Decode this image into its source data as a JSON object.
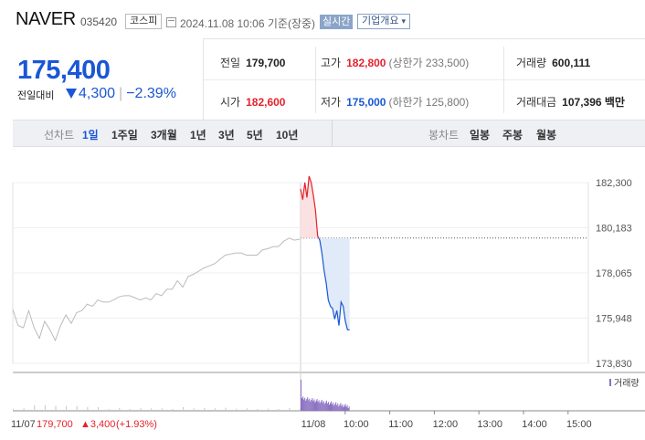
{
  "header": {
    "name": "NAVER",
    "code": "035420",
    "market": "코스피",
    "datetime": "2024.11.08 10:06 기준(장중)",
    "live_label": "실시간",
    "corp_info_label": "기업개요"
  },
  "price": {
    "current": "175,400",
    "change_label": "전일대비",
    "change_abs": "4,300",
    "change_pct": "−2.39%",
    "direction": "down"
  },
  "info": {
    "prev_label": "전일",
    "prev_value": "179,700",
    "high_label": "고가",
    "high_value": "182,800",
    "upper_limit": "(상한가 233,500)",
    "volume_label": "거래량",
    "volume_value": "600,111",
    "open_label": "시가",
    "open_value": "182,600",
    "low_label": "저가",
    "low_value": "175,000",
    "lower_limit": "(하한가 125,800)",
    "amount_label": "거래대금",
    "amount_value": "107,396 백만"
  },
  "toolbar": {
    "line_label": "선차트",
    "periods": [
      "1일",
      "1주일",
      "3개월",
      "1년",
      "3년",
      "5년",
      "10년"
    ],
    "active_period": "1일",
    "candle_label": "봉차트",
    "candle_periods": [
      "일봉",
      "주봉",
      "월봉"
    ]
  },
  "chart_data": {
    "type": "line",
    "y_ticks": [
      "182,300",
      "180,183",
      "178,065",
      "175,948",
      "173,830"
    ],
    "ylim": [
      173830,
      182300
    ],
    "prev_close": 179700,
    "x_ticks": [
      "11/07",
      "11/08",
      "10:00",
      "11:00",
      "12:00",
      "13:00",
      "14:00",
      "15:00"
    ],
    "volume_label": "거래량",
    "prev_day_series": {
      "name": "11/07",
      "color": "#bbbbbb",
      "values": [
        176350,
        175600,
        175500,
        176300,
        175500,
        175000,
        175800,
        175400,
        174900,
        175600,
        176100,
        175700,
        176200,
        176300,
        176600,
        176500,
        176800,
        176700,
        176700,
        176800,
        176950,
        177000,
        177000,
        176900,
        176800,
        176900,
        176800,
        177100,
        177000,
        177300,
        177300,
        177700,
        177400,
        177900,
        178000,
        178150,
        178300,
        178400,
        178500,
        178700,
        178900,
        178950,
        179000,
        179000,
        178900,
        178900,
        178900,
        179150,
        179200,
        179300,
        179300,
        179550,
        179700,
        179600,
        179650
      ]
    },
    "today_series": {
      "name": "11/08",
      "up_color": "#e4212b",
      "down_color": "#1a57d6",
      "values": [
        182000,
        181500,
        182300,
        181600,
        182600,
        182300,
        181700,
        181000,
        179800,
        179600,
        179000,
        178200,
        177600,
        176800,
        176500,
        176400,
        175900,
        176300,
        175600,
        176700,
        176500,
        175800,
        175400,
        175400
      ]
    },
    "footer": {
      "prev_date": "11/07",
      "prev_close": "179,700",
      "prev_change": "▲3,400",
      "prev_change_pct": "(+1.93%)"
    }
  }
}
